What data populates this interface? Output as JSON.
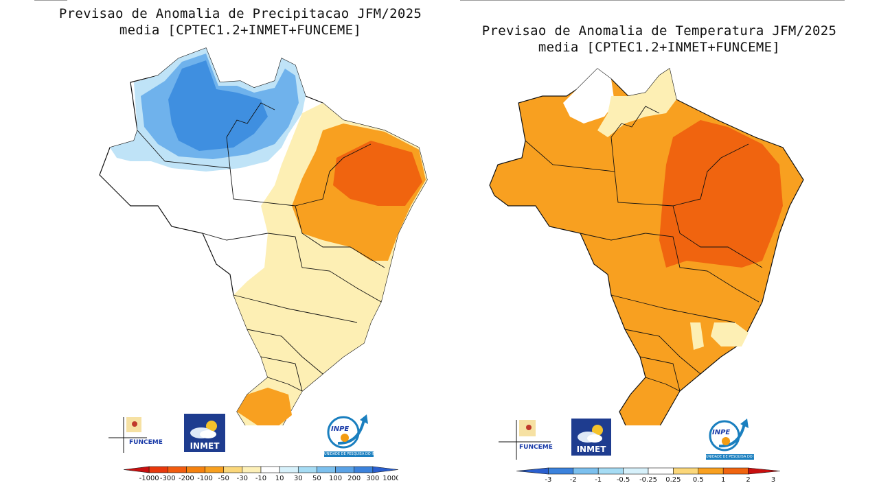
{
  "panels": [
    {
      "title_line1": "Previsao de Anomalia de Precipitacao JFM/2025",
      "title_line2": "media [CPTEC1.2+INMET+FUNCEME]",
      "colorbar": {
        "labels": [
          "-1000",
          "-300",
          "-200",
          "-100",
          "-50",
          "-30",
          "-10",
          "10",
          "30",
          "50",
          "100",
          "200",
          "300",
          "1000"
        ],
        "colors": [
          "#c80f0f",
          "#e8380c",
          "#f25c0f",
          "#f5820f",
          "#f8a020",
          "#fbd77a",
          "#fdf0b8",
          "#ffffff",
          "#d7f1fb",
          "#a6dcf4",
          "#7cc0ee",
          "#5aa2e6",
          "#3b82dc",
          "#2a5fcf"
        ]
      }
    },
    {
      "title_line1": "Previsao de Anomalia de Temperatura JFM/2025",
      "title_line2": "media [CPTEC1.2+INMET+FUNCEME]",
      "colorbar": {
        "labels": [
          "-3",
          "-2",
          "-1",
          "-0.5",
          "-0.25",
          "0.25",
          "0.5",
          "1",
          "2",
          "3"
        ],
        "colors": [
          "#2a5fcf",
          "#3b82dc",
          "#7cc0ee",
          "#a6dcf4",
          "#d7f1fb",
          "#ffffff",
          "#fbd77a",
          "#f8a020",
          "#f0640f",
          "#c80f0f"
        ]
      }
    }
  ],
  "logos": {
    "funceme": "FUNCEME",
    "inmet": "INMET",
    "inpe": "INPE",
    "inpe_sub": "UNIDADE DE PESQUISA DO INPE"
  },
  "colors": {
    "blue_dark": "#3f8fe0",
    "blue_mid": "#6fb2ec",
    "blue_light": "#bfe3f7",
    "yellow_light": "#fdefb4",
    "orange": "#f8a020",
    "orange_dark": "#f0640f"
  },
  "icons": [
    "sun-cloud-icon",
    "inpe-arrow-icon",
    "crosshair-icon"
  ]
}
